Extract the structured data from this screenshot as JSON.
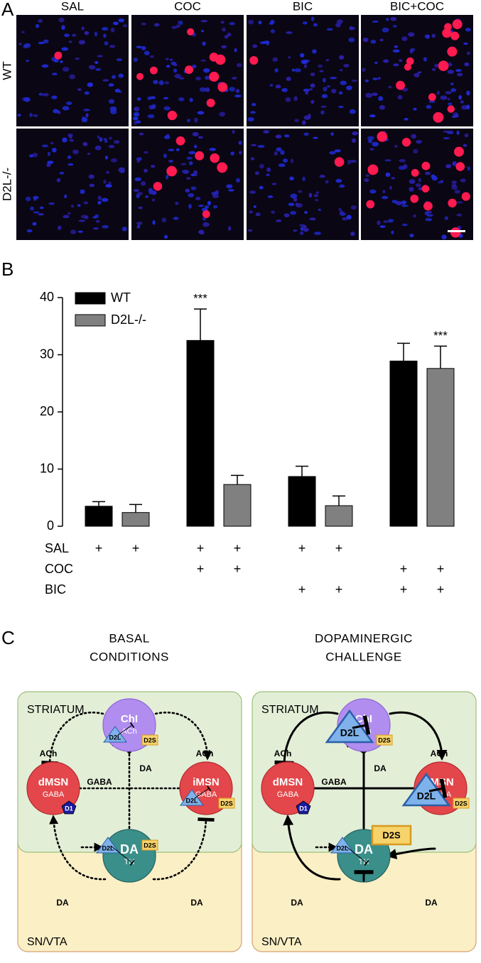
{
  "panel_a": {
    "label": "A",
    "columns": [
      "SAL",
      "COC",
      "BIC",
      "BIC+COC"
    ],
    "rows": [
      "WT",
      "D2L-/-"
    ]
  },
  "chart_data": {
    "type": "bar",
    "label": "B",
    "categories": [
      null,
      null,
      null,
      null
    ],
    "series": [
      {
        "name": "WT",
        "color": "#000000",
        "values": [
          3.5,
          32.5,
          8.7,
          28.9
        ],
        "errors": [
          0.8,
          5.5,
          1.8,
          3.1
        ],
        "significance": [
          null,
          "***",
          null,
          null
        ]
      },
      {
        "name": "D2L-/-",
        "color": "#808080",
        "values": [
          2.4,
          7.3,
          3.6,
          27.6
        ],
        "errors": [
          1.4,
          1.6,
          1.7,
          3.9
        ],
        "significance": [
          null,
          null,
          null,
          "***"
        ]
      }
    ],
    "ylim": [
      0,
      40
    ],
    "yticks": [
      0,
      10,
      20,
      30,
      40
    ],
    "legend": "upper left",
    "conditions": [
      {
        "name": "SAL",
        "marks": [
          "+",
          "+",
          "+",
          "+",
          "+",
          "+",
          null,
          null
        ]
      },
      {
        "name": "COC",
        "marks": [
          null,
          null,
          "+",
          "+",
          null,
          null,
          "+",
          "+"
        ]
      },
      {
        "name": "BIC",
        "marks": [
          null,
          null,
          null,
          null,
          "+",
          "+",
          "+",
          "+"
        ]
      }
    ]
  },
  "panel_c": {
    "label": "C",
    "panels": [
      {
        "title": [
          "BASAL",
          "CONDITIONS"
        ],
        "regions": [
          "STRIATUM",
          "SN/VTA"
        ],
        "nodes": [
          {
            "label": "ChI",
            "sublabel": "ACh",
            "receptors": [
              "D2L",
              "D2S"
            ]
          },
          {
            "label": "dMSN",
            "sublabel": "GABA",
            "receptors": [
              "D1"
            ]
          },
          {
            "label": "iMSN",
            "sublabel": "GABA",
            "receptors": [
              "D2L",
              "D2S"
            ]
          },
          {
            "label": "DA",
            "sublabel": "TH",
            "receptors": [
              "D2L",
              "D2S"
            ]
          }
        ],
        "edge_labels": [
          "ACh",
          "ACh",
          "DA",
          "GABA",
          "DA",
          "DA"
        ]
      },
      {
        "title": [
          "DOPAMINERGIC",
          "CHALLENGE"
        ],
        "regions": [
          "STRIATUM",
          "SN/VTA"
        ],
        "nodes": [
          {
            "label": "ChI",
            "sublabel": "ACh",
            "receptors": [
              "D2L",
              "D2S"
            ]
          },
          {
            "label": "dMSN",
            "sublabel": "GABA",
            "receptors": [
              "D1"
            ]
          },
          {
            "label": "iMSN",
            "sublabel": "GABA",
            "receptors": [
              "D2L",
              "D2S"
            ]
          },
          {
            "label": "DA",
            "sublabel": "TH",
            "receptors": [
              "D2L",
              "D2S"
            ]
          }
        ],
        "edge_labels": [
          "ACh",
          "ACh",
          "DA",
          "GABA",
          "DA",
          "DA"
        ]
      }
    ]
  }
}
